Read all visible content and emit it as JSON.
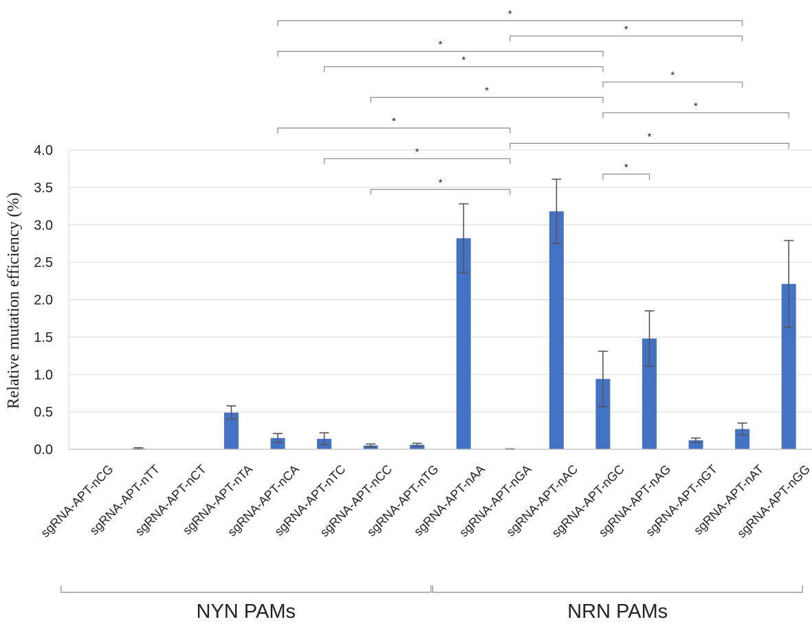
{
  "chart_data": {
    "type": "bar",
    "title": "",
    "xlabel": "",
    "ylabel": "Relative mutation efficiency (%)",
    "ylim": [
      0,
      4.0
    ],
    "yticks": [
      "0.0",
      "0.5",
      "1.0",
      "1.5",
      "2.0",
      "2.5",
      "3.0",
      "3.5",
      "4.0"
    ],
    "grid": true,
    "bar_color": "#4472c4",
    "categories": [
      "sgRNA-APT-nCG",
      "sgRNA-APT-nTT",
      "sgRNA-APT-nCT",
      "sgRNA-APT-nTA",
      "sgRNA-APT-nCA",
      "sgRNA-APT-nTC",
      "sgRNA-APT-nCC",
      "sgRNA-APT-nTG",
      "sgRNA-APT-nAA",
      "sgRNA-APT-nGA",
      "sgRNA-APT-nAC",
      "sgRNA-APT-nGC",
      "sgRNA-APT-nAG",
      "sgRNA-APT-nGT",
      "sgRNA-APT-nAT",
      "sgRNA-APT-nGG"
    ],
    "values": [
      0.0,
      0.01,
      0.0,
      0.49,
      0.15,
      0.14,
      0.05,
      0.06,
      2.82,
      0.0,
      3.18,
      0.94,
      1.48,
      0.12,
      0.27,
      2.21
    ],
    "errors": [
      0.0,
      0.01,
      0.0,
      0.09,
      0.06,
      0.08,
      0.02,
      0.02,
      0.46,
      0.005,
      0.43,
      0.37,
      0.37,
      0.03,
      0.08,
      0.58
    ],
    "significance": [
      {
        "from": 4,
        "to": 14,
        "label": "*"
      },
      {
        "from": 9,
        "to": 14,
        "label": "*"
      },
      {
        "from": 4,
        "to": 11,
        "label": "*"
      },
      {
        "from": 5,
        "to": 11,
        "label": "*"
      },
      {
        "from": 11,
        "to": 14,
        "label": "*"
      },
      {
        "from": 6,
        "to": 11,
        "label": "*"
      },
      {
        "from": 11,
        "to": 15,
        "label": "*"
      },
      {
        "from": 4,
        "to": 9,
        "label": "*"
      },
      {
        "from": 9,
        "to": 15,
        "label": "*"
      },
      {
        "from": 5,
        "to": 9,
        "label": "*"
      },
      {
        "from": 11,
        "to": 12,
        "label": "*"
      },
      {
        "from": 6,
        "to": 9,
        "label": "*"
      }
    ],
    "groups": [
      {
        "label": "NYN PAMs",
        "from": 0,
        "to": 7
      },
      {
        "label": "NRN PAMs",
        "from": 8,
        "to": 15
      }
    ]
  }
}
